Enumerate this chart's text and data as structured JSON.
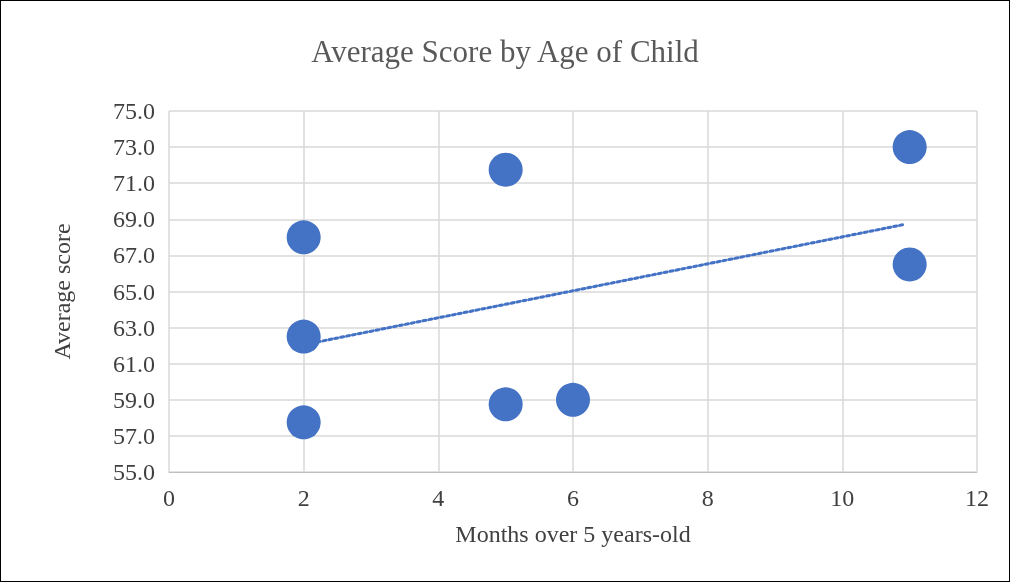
{
  "chart_data": {
    "type": "scatter",
    "title": "Average Score by Age of Child",
    "xlabel": "Months over 5 years-old",
    "ylabel": "Average score",
    "series": [
      {
        "color": "#4472c4",
        "marker": "circle",
        "x": [
          2,
          2,
          2,
          5,
          5,
          6,
          11,
          11
        ],
        "values": [
          68.0,
          62.5,
          57.75,
          71.75,
          58.75,
          59.0,
          73.0,
          66.5
        ]
      },
      {
        "type": "line",
        "color": "#4472c4",
        "marker": "none",
        "line_style": "dotted",
        "x": [
          2.2,
          10.9
        ],
        "values": [
          62.2,
          68.7
        ]
      }
    ],
    "xlim": [
      0,
      12
    ],
    "xticks": [
      0,
      2,
      4,
      6,
      8,
      10,
      12
    ],
    "ylim": [
      55,
      75
    ],
    "yticks": [
      {
        "value": 55,
        "label": "55.0"
      },
      {
        "value": 57,
        "label": "57.0"
      },
      {
        "value": 59,
        "label": "59.0"
      },
      {
        "value": 61,
        "label": "61.0"
      },
      {
        "value": 63,
        "label": "63.0"
      },
      {
        "value": 65,
        "label": "65.0"
      },
      {
        "value": 67,
        "label": "67.0"
      },
      {
        "value": 69,
        "label": "69.0"
      },
      {
        "value": 71,
        "label": "71.0"
      },
      {
        "value": 73,
        "label": "73.0"
      },
      {
        "value": 75,
        "label": "75.0"
      }
    ],
    "grid": true
  }
}
